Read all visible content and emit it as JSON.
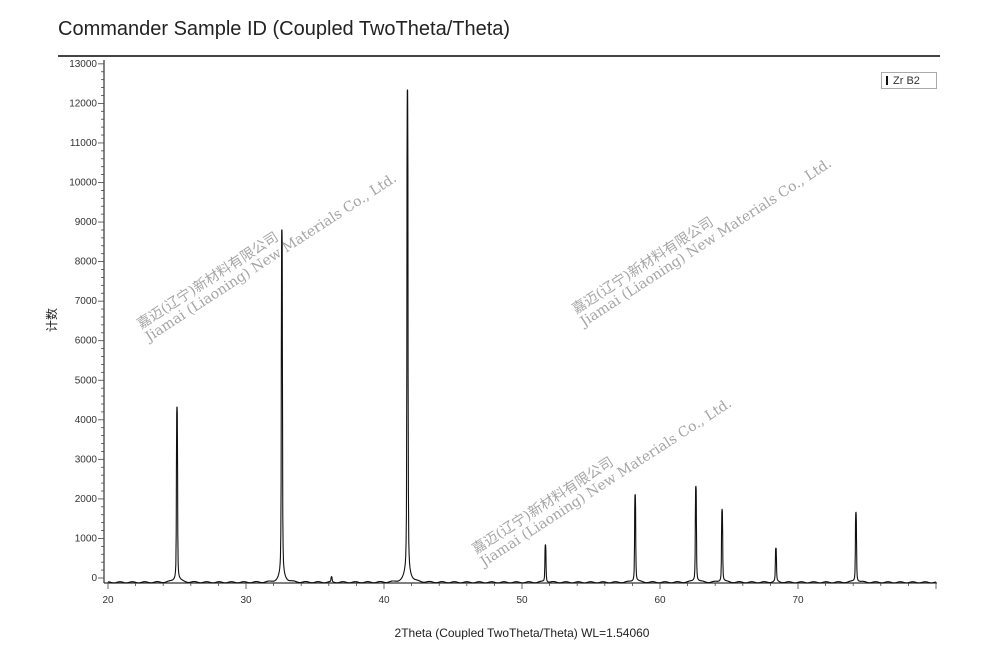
{
  "chart_data": {
    "type": "line",
    "title": "Commander Sample ID (Coupled TwoTheta/Theta)",
    "xlabel": "2Theta (Coupled TwoTheta/Theta) WL=1.54060",
    "ylabel": "计数",
    "xlim": [
      20,
      80
    ],
    "ylim": [
      0,
      13000
    ],
    "x_ticks": [
      20,
      30,
      40,
      50,
      60,
      70
    ],
    "y_ticks": [
      0,
      1000,
      2000,
      3000,
      4000,
      5000,
      6000,
      7000,
      8000,
      9000,
      10000,
      11000,
      12000,
      13000
    ],
    "grid": false,
    "legend_position": "top-right",
    "series": [
      {
        "name": "Zr B2",
        "color": "#111111",
        "peaks": [
          {
            "x": 25.0,
            "y": 4200
          },
          {
            "x": 32.6,
            "y": 8400
          },
          {
            "x": 36.2,
            "y": 120
          },
          {
            "x": 41.7,
            "y": 11750
          },
          {
            "x": 51.7,
            "y": 900
          },
          {
            "x": 58.2,
            "y": 2100
          },
          {
            "x": 62.6,
            "y": 2300
          },
          {
            "x": 64.5,
            "y": 1750
          },
          {
            "x": 68.4,
            "y": 800
          },
          {
            "x": 74.2,
            "y": 1680
          }
        ]
      }
    ]
  },
  "watermark": {
    "cn": "嘉迈(辽宁)新材料有限公司",
    "en": "Jiamai (Liaoning) New Materials Co., Ltd."
  }
}
